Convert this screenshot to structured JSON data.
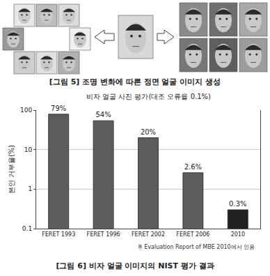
{
  "figure5": {
    "caption": "[그림 5] 조명 변화에 따른 정면 얼굴 이미지 생성"
  },
  "chart_data": {
    "type": "bar",
    "title": "비자 얼굴 사진 평가(대조 오류율 0.1%)",
    "y_label": "본인 거부율(%)",
    "categories": [
      "FERET 1993",
      "FERET 1996",
      "FERET 2002",
      "FERET 2006",
      "2010"
    ],
    "values": [
      79,
      54,
      20,
      2.6,
      0.3
    ],
    "value_labels": [
      "79%",
      "54%",
      "20%",
      "2.6%",
      "0.3%"
    ],
    "data_labels": true,
    "colors": [
      "#5c5c5c",
      "#5c5c5c",
      "#5c5c5c",
      "#5c5c5c",
      "#222222"
    ],
    "log": "y",
    "ylim": [
      0.1,
      100
    ],
    "yticks": [
      0.1,
      1,
      10,
      100
    ],
    "grid": true,
    "annotations": [
      "※ Evaluation Report of MBE 2010에서 인용"
    ]
  },
  "figure6": {
    "caption": "[그림 6] 비자 얼굴 이미지의 NIST 평가 결과"
  }
}
